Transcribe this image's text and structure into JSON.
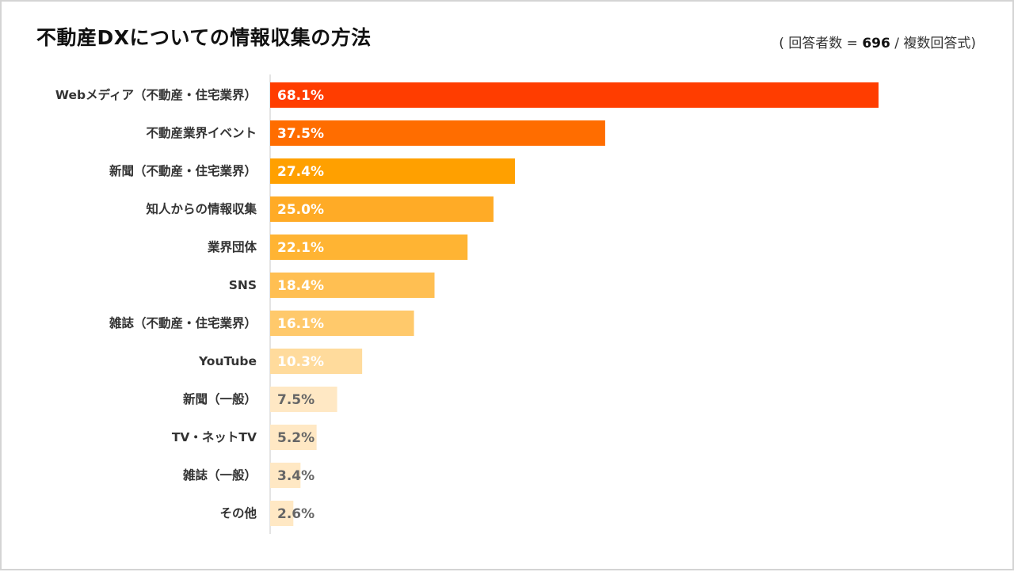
{
  "header": {
    "title": "不動産DXについての情報収集の方法",
    "note_prefix": "( 回答者数 = ",
    "note_count": "696",
    "note_suffix": " / 複数回答式)"
  },
  "chart_data": {
    "type": "bar",
    "orientation": "horizontal",
    "title": "不動産DXについての情報収集の方法",
    "xlabel": "",
    "ylabel": "",
    "xlim": [
      0,
      80
    ],
    "unit": "%",
    "grid": false,
    "categories": [
      "Webメディア（不動産・住宅業界）",
      "不動産業界イベント",
      "新聞（不動産・住宅業界）",
      "知人からの情報収集",
      "業界団体",
      "SNS",
      "雑誌（不動産・住宅業界）",
      "YouTube",
      "新聞（一般）",
      "TV・ネットTV",
      "雑誌（一般）",
      "その他"
    ],
    "values": [
      68.1,
      37.5,
      27.4,
      25.0,
      22.1,
      18.4,
      16.1,
      10.3,
      7.5,
      5.2,
      3.4,
      2.6
    ],
    "value_labels": [
      "68.1%",
      "37.5%",
      "27.4%",
      "25.0%",
      "22.1%",
      "18.4%",
      "16.1%",
      "10.3%",
      "7.5%",
      "5.2%",
      "3.4%",
      "2.6%"
    ],
    "colors": [
      "#ff3d00",
      "#ff6d00",
      "#ffa000",
      "#ffab26",
      "#ffb433",
      "#ffbf52",
      "#ffc96b",
      "#ffdb9c",
      "#ffe8c4",
      "#ffe8c4",
      "#ffe8c4",
      "#ffe8c4"
    ],
    "label_colors": [
      "#ffffff",
      "#ffffff",
      "#ffffff",
      "#ffffff",
      "#ffffff",
      "#ffffff",
      "#ffffff",
      "#ffffff",
      "#666666",
      "#666666",
      "#666666",
      "#666666"
    ],
    "axis_color": "#c8c8c8"
  }
}
